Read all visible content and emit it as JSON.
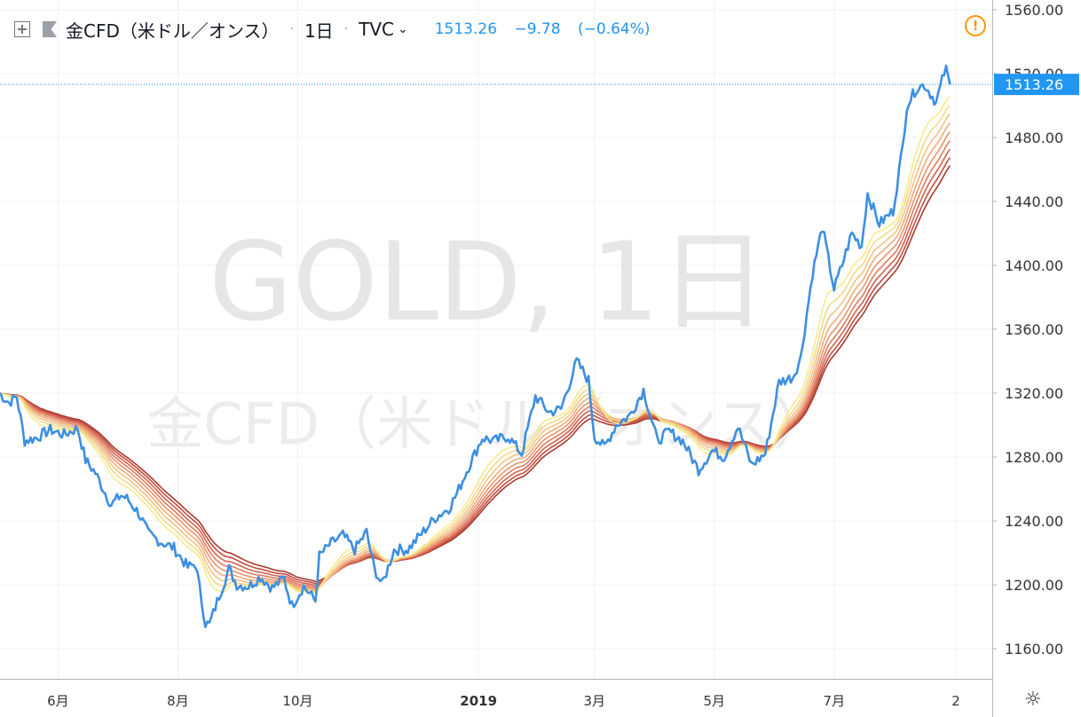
{
  "legend": {
    "symbol": "金CFD（米ドル／オンス）",
    "interval": "1日",
    "source": "TVC",
    "last": "1513.26",
    "change": "−9.78",
    "change_pct": "(−0.64%)"
  },
  "watermark": {
    "line1": "GOLD, 1日",
    "line2": "金CFD（米ドル／オンス）"
  },
  "price_label": "1513.26",
  "colors": {
    "price_line": "#3d8fe0",
    "last_price_label": "#2196f3",
    "ribbon": [
      "#f7ea8f",
      "#f4d98a",
      "#f2c282",
      "#eeab79",
      "#e9936d",
      "#e07a5f",
      "#d26350",
      "#c14d3f",
      "#a83a2e"
    ],
    "alert_icon": "#ff9800"
  },
  "icons": {
    "legend_toggle": "plus-square-icon",
    "alert": "exclamation-circle-icon",
    "settings": "gear-icon",
    "interval_menu": "chevron-down-icon"
  },
  "chart_data": {
    "type": "line",
    "ylim": [
      1140,
      1560
    ],
    "y_ticks": [
      "1560.00",
      "1520.00",
      "1480.00",
      "1440.00",
      "1400.00",
      "1360.00",
      "1320.00",
      "1280.00",
      "1240.00",
      "1200.00",
      "1160.00"
    ],
    "x_ticks": [
      "6月",
      "8月",
      "10月",
      "2019",
      "3月",
      "5月",
      "7月",
      "2"
    ],
    "x_start": "2018-05-02",
    "series_name": "GOLD",
    "price_anchors": [
      [
        "2018-05-02",
        1320
      ],
      [
        "2018-05-07",
        1314
      ],
      [
        "2018-05-11",
        1318
      ],
      [
        "2018-05-15",
        1290
      ],
      [
        "2018-05-21",
        1292
      ],
      [
        "2018-05-28",
        1297
      ],
      [
        "2018-06-04",
        1294
      ],
      [
        "2018-06-11",
        1298
      ],
      [
        "2018-06-15",
        1278
      ],
      [
        "2018-06-20",
        1270
      ],
      [
        "2018-06-28",
        1250
      ],
      [
        "2018-07-03",
        1256
      ],
      [
        "2018-07-06",
        1254
      ],
      [
        "2018-07-12",
        1245
      ],
      [
        "2018-07-17",
        1232
      ],
      [
        "2018-07-23",
        1227
      ],
      [
        "2018-07-30",
        1223
      ],
      [
        "2018-08-06",
        1211
      ],
      [
        "2018-08-10",
        1213
      ],
      [
        "2018-08-15",
        1176
      ],
      [
        "2018-08-17",
        1175
      ],
      [
        "2018-08-22",
        1193
      ],
      [
        "2018-08-27",
        1210
      ],
      [
        "2018-08-31",
        1200
      ],
      [
        "2018-09-06",
        1199
      ],
      [
        "2018-09-12",
        1205
      ],
      [
        "2018-09-18",
        1198
      ],
      [
        "2018-09-24",
        1204
      ],
      [
        "2018-09-28",
        1187
      ],
      [
        "2018-10-04",
        1199
      ],
      [
        "2018-10-10",
        1190
      ],
      [
        "2018-10-12",
        1218
      ],
      [
        "2018-10-18",
        1226
      ],
      [
        "2018-10-24",
        1231
      ],
      [
        "2018-10-30",
        1222
      ],
      [
        "2018-11-05",
        1233
      ],
      [
        "2018-11-09",
        1210
      ],
      [
        "2018-11-13",
        1200
      ],
      [
        "2018-11-19",
        1222
      ],
      [
        "2018-11-26",
        1222
      ],
      [
        "2018-12-03",
        1232
      ],
      [
        "2018-12-10",
        1242
      ],
      [
        "2018-12-17",
        1248
      ],
      [
        "2018-12-21",
        1257
      ],
      [
        "2018-12-27",
        1274
      ],
      [
        "2019-01-03",
        1292
      ],
      [
        "2019-01-09",
        1290
      ],
      [
        "2019-01-16",
        1293
      ],
      [
        "2019-01-23",
        1282
      ],
      [
        "2019-01-30",
        1318
      ],
      [
        "2019-02-06",
        1308
      ],
      [
        "2019-02-12",
        1310
      ],
      [
        "2019-02-20",
        1340
      ],
      [
        "2019-02-26",
        1328
      ],
      [
        "2019-03-01",
        1293
      ],
      [
        "2019-03-06",
        1286
      ],
      [
        "2019-03-12",
        1300
      ],
      [
        "2019-03-19",
        1306
      ],
      [
        "2019-03-26",
        1322
      ],
      [
        "2019-04-02",
        1290
      ],
      [
        "2019-04-08",
        1296
      ],
      [
        "2019-04-15",
        1290
      ],
      [
        "2019-04-23",
        1272
      ],
      [
        "2019-04-30",
        1284
      ],
      [
        "2019-05-06",
        1280
      ],
      [
        "2019-05-13",
        1299
      ],
      [
        "2019-05-20",
        1275
      ],
      [
        "2019-05-27",
        1282
      ],
      [
        "2019-06-03",
        1327
      ],
      [
        "2019-06-10",
        1330
      ],
      [
        "2019-06-14",
        1342
      ],
      [
        "2019-06-20",
        1395
      ],
      [
        "2019-06-25",
        1424
      ],
      [
        "2019-07-01",
        1385
      ],
      [
        "2019-07-05",
        1400
      ],
      [
        "2019-07-10",
        1420
      ],
      [
        "2019-07-15",
        1412
      ],
      [
        "2019-07-18",
        1445
      ],
      [
        "2019-07-24",
        1426
      ],
      [
        "2019-07-31",
        1434
      ],
      [
        "2019-08-05",
        1475
      ],
      [
        "2019-08-07",
        1500
      ],
      [
        "2019-08-12",
        1511
      ],
      [
        "2019-08-16",
        1513
      ],
      [
        "2019-08-22",
        1502
      ],
      [
        "2019-08-27",
        1525
      ],
      [
        "2019-08-29",
        1513.26
      ]
    ]
  }
}
